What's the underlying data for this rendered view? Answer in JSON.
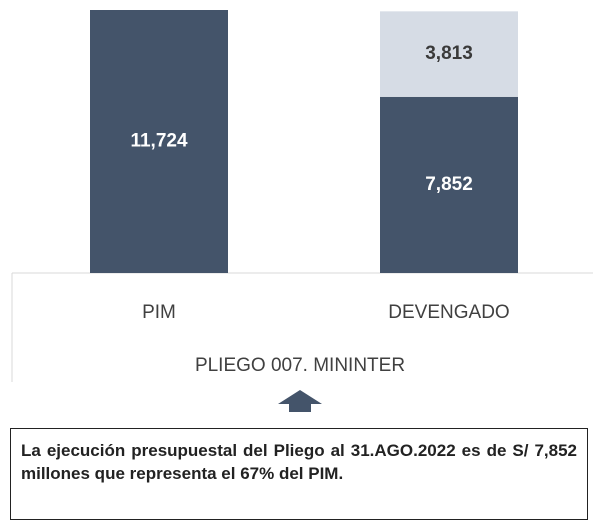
{
  "chart_data": {
    "type": "stacked_bar",
    "categories": [
      "PIM",
      "DEVENGADO"
    ],
    "xlabel": "PLIEGO 007. MININTER",
    "series": [
      {
        "color": "#44546a",
        "label_color": "#ffffff",
        "values": [
          11724,
          7852
        ],
        "value_labels": [
          "11,724",
          "7,852"
        ]
      },
      {
        "color": "#d6dce5",
        "label_color": "#3a3a3a",
        "values": [
          null,
          3813
        ],
        "value_labels": [
          null,
          "3,813"
        ]
      }
    ]
  },
  "note": "La ejecución presupuestal del Pliego al 31.AGO.2022 es de S/ 7,852 millones que representa el 67% del PIM."
}
